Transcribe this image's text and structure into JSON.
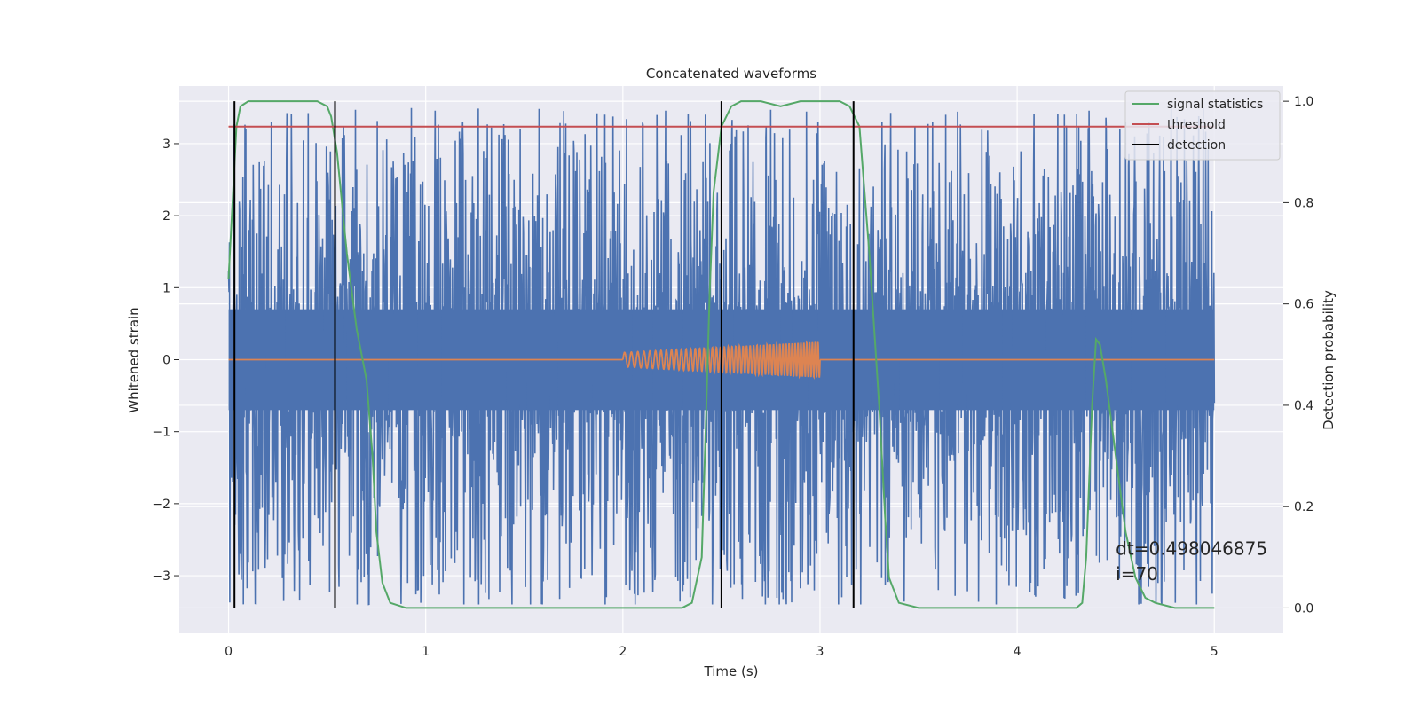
{
  "chart_data": {
    "type": "line",
    "title": "Concatenated waveforms",
    "xlabel": "Time (s)",
    "ylabel_left": "Whitened strain",
    "ylabel_right": "Detection probability",
    "xlim": [
      -0.25,
      5.35
    ],
    "ylim_left": [
      -3.8,
      3.8
    ],
    "ylim_right": [
      -0.05,
      1.03
    ],
    "xticks": [
      0,
      1,
      2,
      3,
      4,
      5
    ],
    "yticks_left": [
      -3,
      -2,
      -1,
      0,
      1,
      2,
      3
    ],
    "yticks_left_labels": [
      "−3",
      "−2",
      "−1",
      "0",
      "1",
      "2",
      "3"
    ],
    "yticks_right": [
      0.0,
      0.2,
      0.4,
      0.6,
      0.8,
      1.0
    ],
    "yticks_right_labels": [
      "0.0",
      "0.2",
      "0.4",
      "0.6",
      "0.8",
      "1.0"
    ],
    "grid": true,
    "legend_placement": "top-right",
    "series": [
      {
        "name": "",
        "axis": "left",
        "kind": "noise",
        "color": "#4c72b0",
        "x_range": [
          0,
          5
        ],
        "band": [
          -0.7,
          0.7
        ],
        "spike_range": [
          -3.4,
          3.5
        ]
      },
      {
        "name": "",
        "axis": "left",
        "kind": "chirp",
        "color": "#dd8452",
        "x_range": [
          0,
          5
        ],
        "chirp_start": 2.0,
        "chirp_end": 3.0,
        "amplitude_start": 0.1,
        "amplitude_end": 0.25
      },
      {
        "name": "signal statistics",
        "axis": "right",
        "color": "#55a868",
        "x": [
          0,
          0.02,
          0.04,
          0.06,
          0.1,
          0.2,
          0.3,
          0.45,
          0.5,
          0.52,
          0.55,
          0.6,
          0.65,
          0.7,
          0.73,
          0.75,
          0.78,
          0.82,
          0.9,
          1.5,
          2.0,
          2.3,
          2.35,
          2.4,
          2.42,
          2.44,
          2.46,
          2.5,
          2.55,
          2.6,
          2.7,
          2.8,
          2.9,
          3.0,
          3.1,
          3.15,
          3.2,
          3.25,
          3.3,
          3.33,
          3.35,
          3.4,
          3.5,
          4.0,
          4.3,
          4.33,
          4.35,
          4.38,
          4.4,
          4.42,
          4.45,
          4.5,
          4.55,
          4.6,
          4.65,
          4.7,
          4.8,
          5.0
        ],
        "y": [
          0.65,
          0.8,
          0.95,
          0.99,
          1.0,
          1.0,
          1.0,
          1.0,
          0.99,
          0.97,
          0.9,
          0.7,
          0.55,
          0.45,
          0.3,
          0.15,
          0.05,
          0.01,
          0.0,
          0.0,
          0.0,
          0.0,
          0.01,
          0.1,
          0.35,
          0.62,
          0.82,
          0.95,
          0.99,
          1.0,
          1.0,
          0.99,
          1.0,
          1.0,
          1.0,
          0.99,
          0.95,
          0.7,
          0.4,
          0.18,
          0.06,
          0.01,
          0.0,
          0.0,
          0.0,
          0.01,
          0.1,
          0.4,
          0.53,
          0.52,
          0.45,
          0.3,
          0.15,
          0.06,
          0.02,
          0.01,
          0.0,
          0.0
        ]
      },
      {
        "name": "threshold",
        "axis": "right",
        "color": "#c44e52",
        "x": [
          0,
          5
        ],
        "y": [
          0.95,
          0.95
        ]
      },
      {
        "name": "detection",
        "axis": "right",
        "color": "#000000",
        "kind": "vlines",
        "x": [
          0.03,
          0.54,
          2.5,
          3.17
        ],
        "y_range": [
          0.0,
          1.0
        ]
      }
    ],
    "annotations": [
      {
        "text": "dt=0.498046875",
        "x": 4.5,
        "y_right": 0.105
      },
      {
        "text": " i=70",
        "x": 4.5,
        "y_right": 0.055
      }
    ]
  }
}
